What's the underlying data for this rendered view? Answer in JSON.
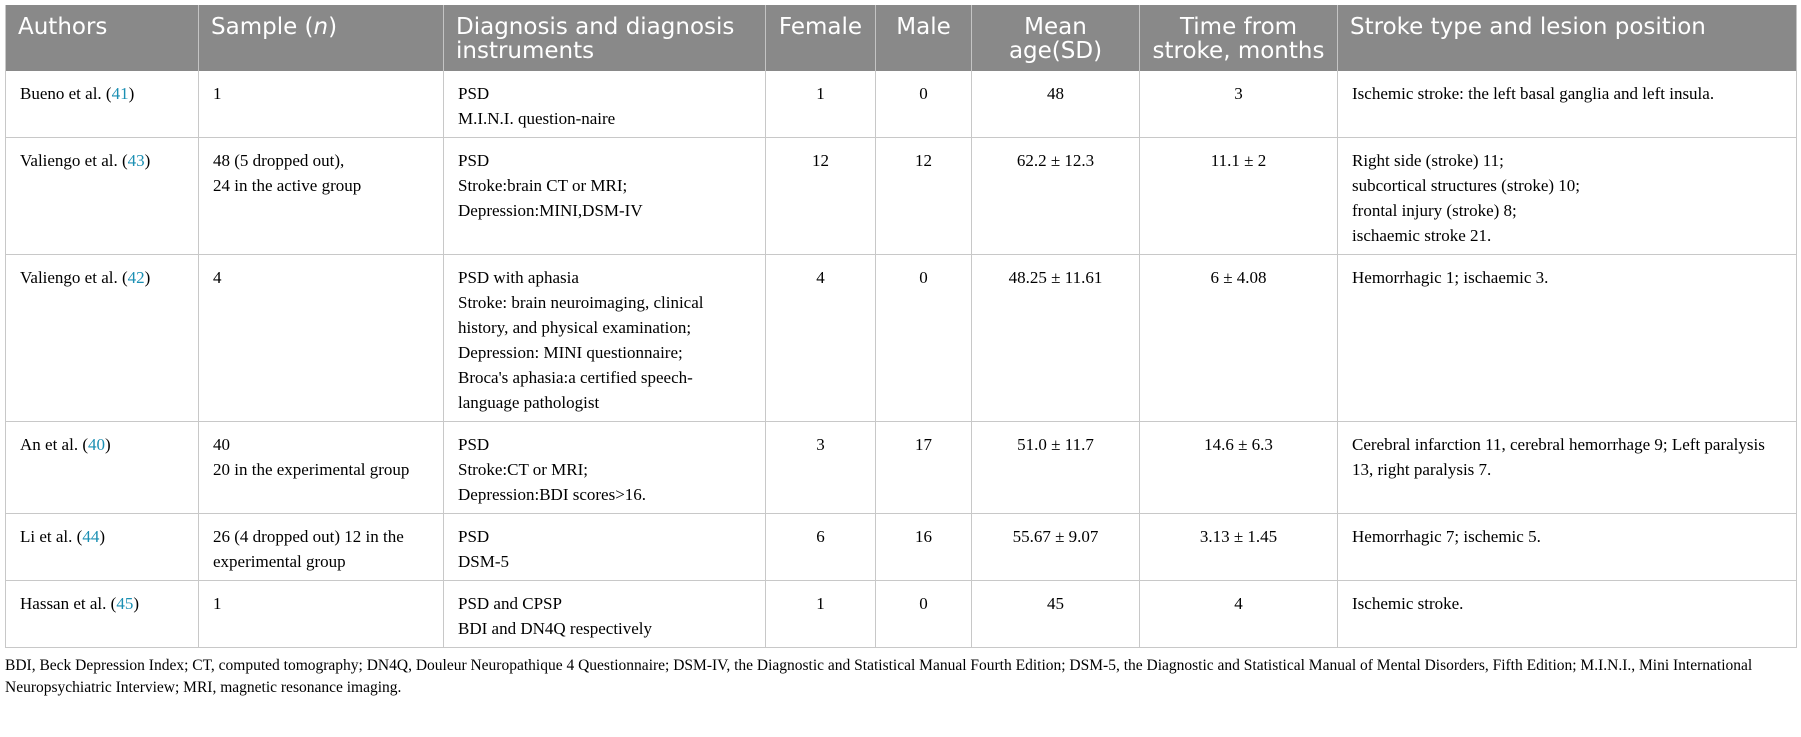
{
  "header": {
    "authors": "Authors",
    "sample_pre": "Sample (",
    "sample_n": "n",
    "sample_post": ")",
    "diagnosis": "Diagnosis and diagnosis instruments",
    "female": "Female",
    "male": "Male",
    "mean_age": "Mean age(SD)",
    "time": "Time from stroke, months",
    "stroke_type": "Stroke type and lesion position"
  },
  "rows": [
    {
      "author": "Bueno et al. (",
      "ref": "41",
      "author_close": ")",
      "sample": "1",
      "diagnosis": "PSD\nM.I.N.I. question-naire",
      "female": "1",
      "male": "0",
      "mean_age": "48",
      "time": "3",
      "stroke_type": "Ischemic stroke: the left basal ganglia and left insula."
    },
    {
      "author": "Valiengo et al. (",
      "ref": "43",
      "author_close": ")",
      "sample": "48 (5 dropped out),\n24 in the active group",
      "diagnosis": "PSD\nStroke:brain CT or MRI;\nDepression:MINI,DSM-IV",
      "female": "12",
      "male": "12",
      "mean_age": "62.2 ± 12.3",
      "time": "11.1 ± 2",
      "stroke_type": "Right side (stroke) 11;\nsubcortical structures (stroke) 10;\nfrontal injury (stroke) 8;\nischaemic stroke 21."
    },
    {
      "author": "Valiengo et al. (",
      "ref": "42",
      "author_close": ")",
      "sample": "4",
      "diagnosis": "PSD with aphasia\nStroke: brain neuroimaging, clinical history, and physical examination;\nDepression: MINI questionnaire;\nBroca's aphasia:a certified speech-language pathologist",
      "female": "4",
      "male": "0",
      "mean_age": "48.25 ± 11.61",
      "time": "6 ± 4.08",
      "stroke_type": "Hemorrhagic 1; ischaemic 3."
    },
    {
      "author": "An et al. (",
      "ref": "40",
      "author_close": ")",
      "sample": " 40\n20 in the experimental group",
      "diagnosis": "PSD\nStroke:CT or MRI;\nDepression:BDI scores>16.",
      "female": "3",
      "male": "17",
      "mean_age": "51.0 ± 11.7",
      "time": "14.6 ± 6.3",
      "stroke_type": "Cerebral infarction 11, cerebral hemorrhage 9; Left paralysis 13, right paralysis 7."
    },
    {
      "author": "Li et al. (",
      "ref": "44",
      "author_close": ")",
      "sample": "26 (4 dropped out) 12 in the experimental group",
      "diagnosis": "PSD\nDSM-5",
      "female": "6",
      "male": "16",
      "mean_age": "55.67 ± 9.07",
      "time": "3.13 ± 1.45",
      "stroke_type": "Hemorrhagic 7; ischemic 5."
    },
    {
      "author": "Hassan et al. (",
      "ref": "45",
      "author_close": ")",
      "sample": "1",
      "diagnosis": "PSD and CPSP\nBDI and DN4Q respectively",
      "female": "1",
      "male": "0",
      "mean_age": "45",
      "time": "4",
      "stroke_type": "Ischemic stroke."
    }
  ],
  "footnote": "BDI, Beck Depression Index; CT, computed tomography; DN4Q, Douleur Neuropathique 4 Questionnaire; DSM-IV, the Diagnostic and Statistical Manual Fourth Edition; DSM-5, the Diagnostic and Statistical Manual of Mental Disorders, Fifth Edition; M.I.N.I., Mini International Neuropsychiatric Interview; MRI, magnetic resonance imaging.",
  "colors": {
    "header_bg": "#898989",
    "ref_link": "#1a8fb3"
  }
}
